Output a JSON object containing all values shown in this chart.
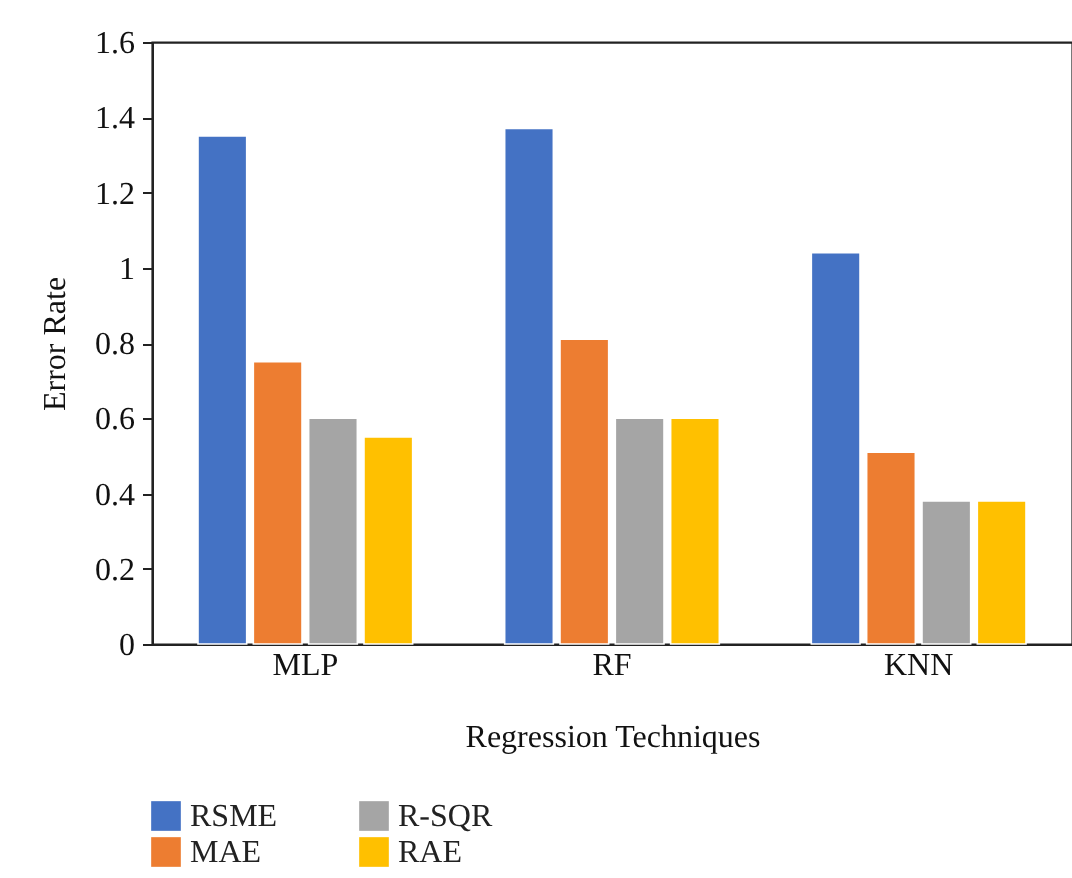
{
  "chart_data": {
    "type": "bar",
    "xlabel": "Regression Techniques",
    "ylabel": "Error Rate",
    "categories": [
      "MLP",
      "RF",
      "KNN"
    ],
    "series": [
      {
        "name": "RSME",
        "color": "#4472c4",
        "values": [
          1.35,
          1.37,
          1.04
        ]
      },
      {
        "name": "MAE",
        "color": "#ed7d31",
        "values": [
          0.75,
          0.81,
          0.51
        ]
      },
      {
        "name": "R-SQR",
        "color": "#a5a5a5",
        "values": [
          0.6,
          0.6,
          0.38
        ]
      },
      {
        "name": "RAE",
        "color": "#ffc000",
        "values": [
          0.55,
          0.6,
          0.38
        ]
      }
    ],
    "ylim": [
      0,
      1.6
    ],
    "yticks": [
      0,
      0.2,
      0.4,
      0.6,
      0.8,
      1,
      1.2,
      1.4,
      1.6
    ],
    "grid": false,
    "legend": "bottom left"
  }
}
